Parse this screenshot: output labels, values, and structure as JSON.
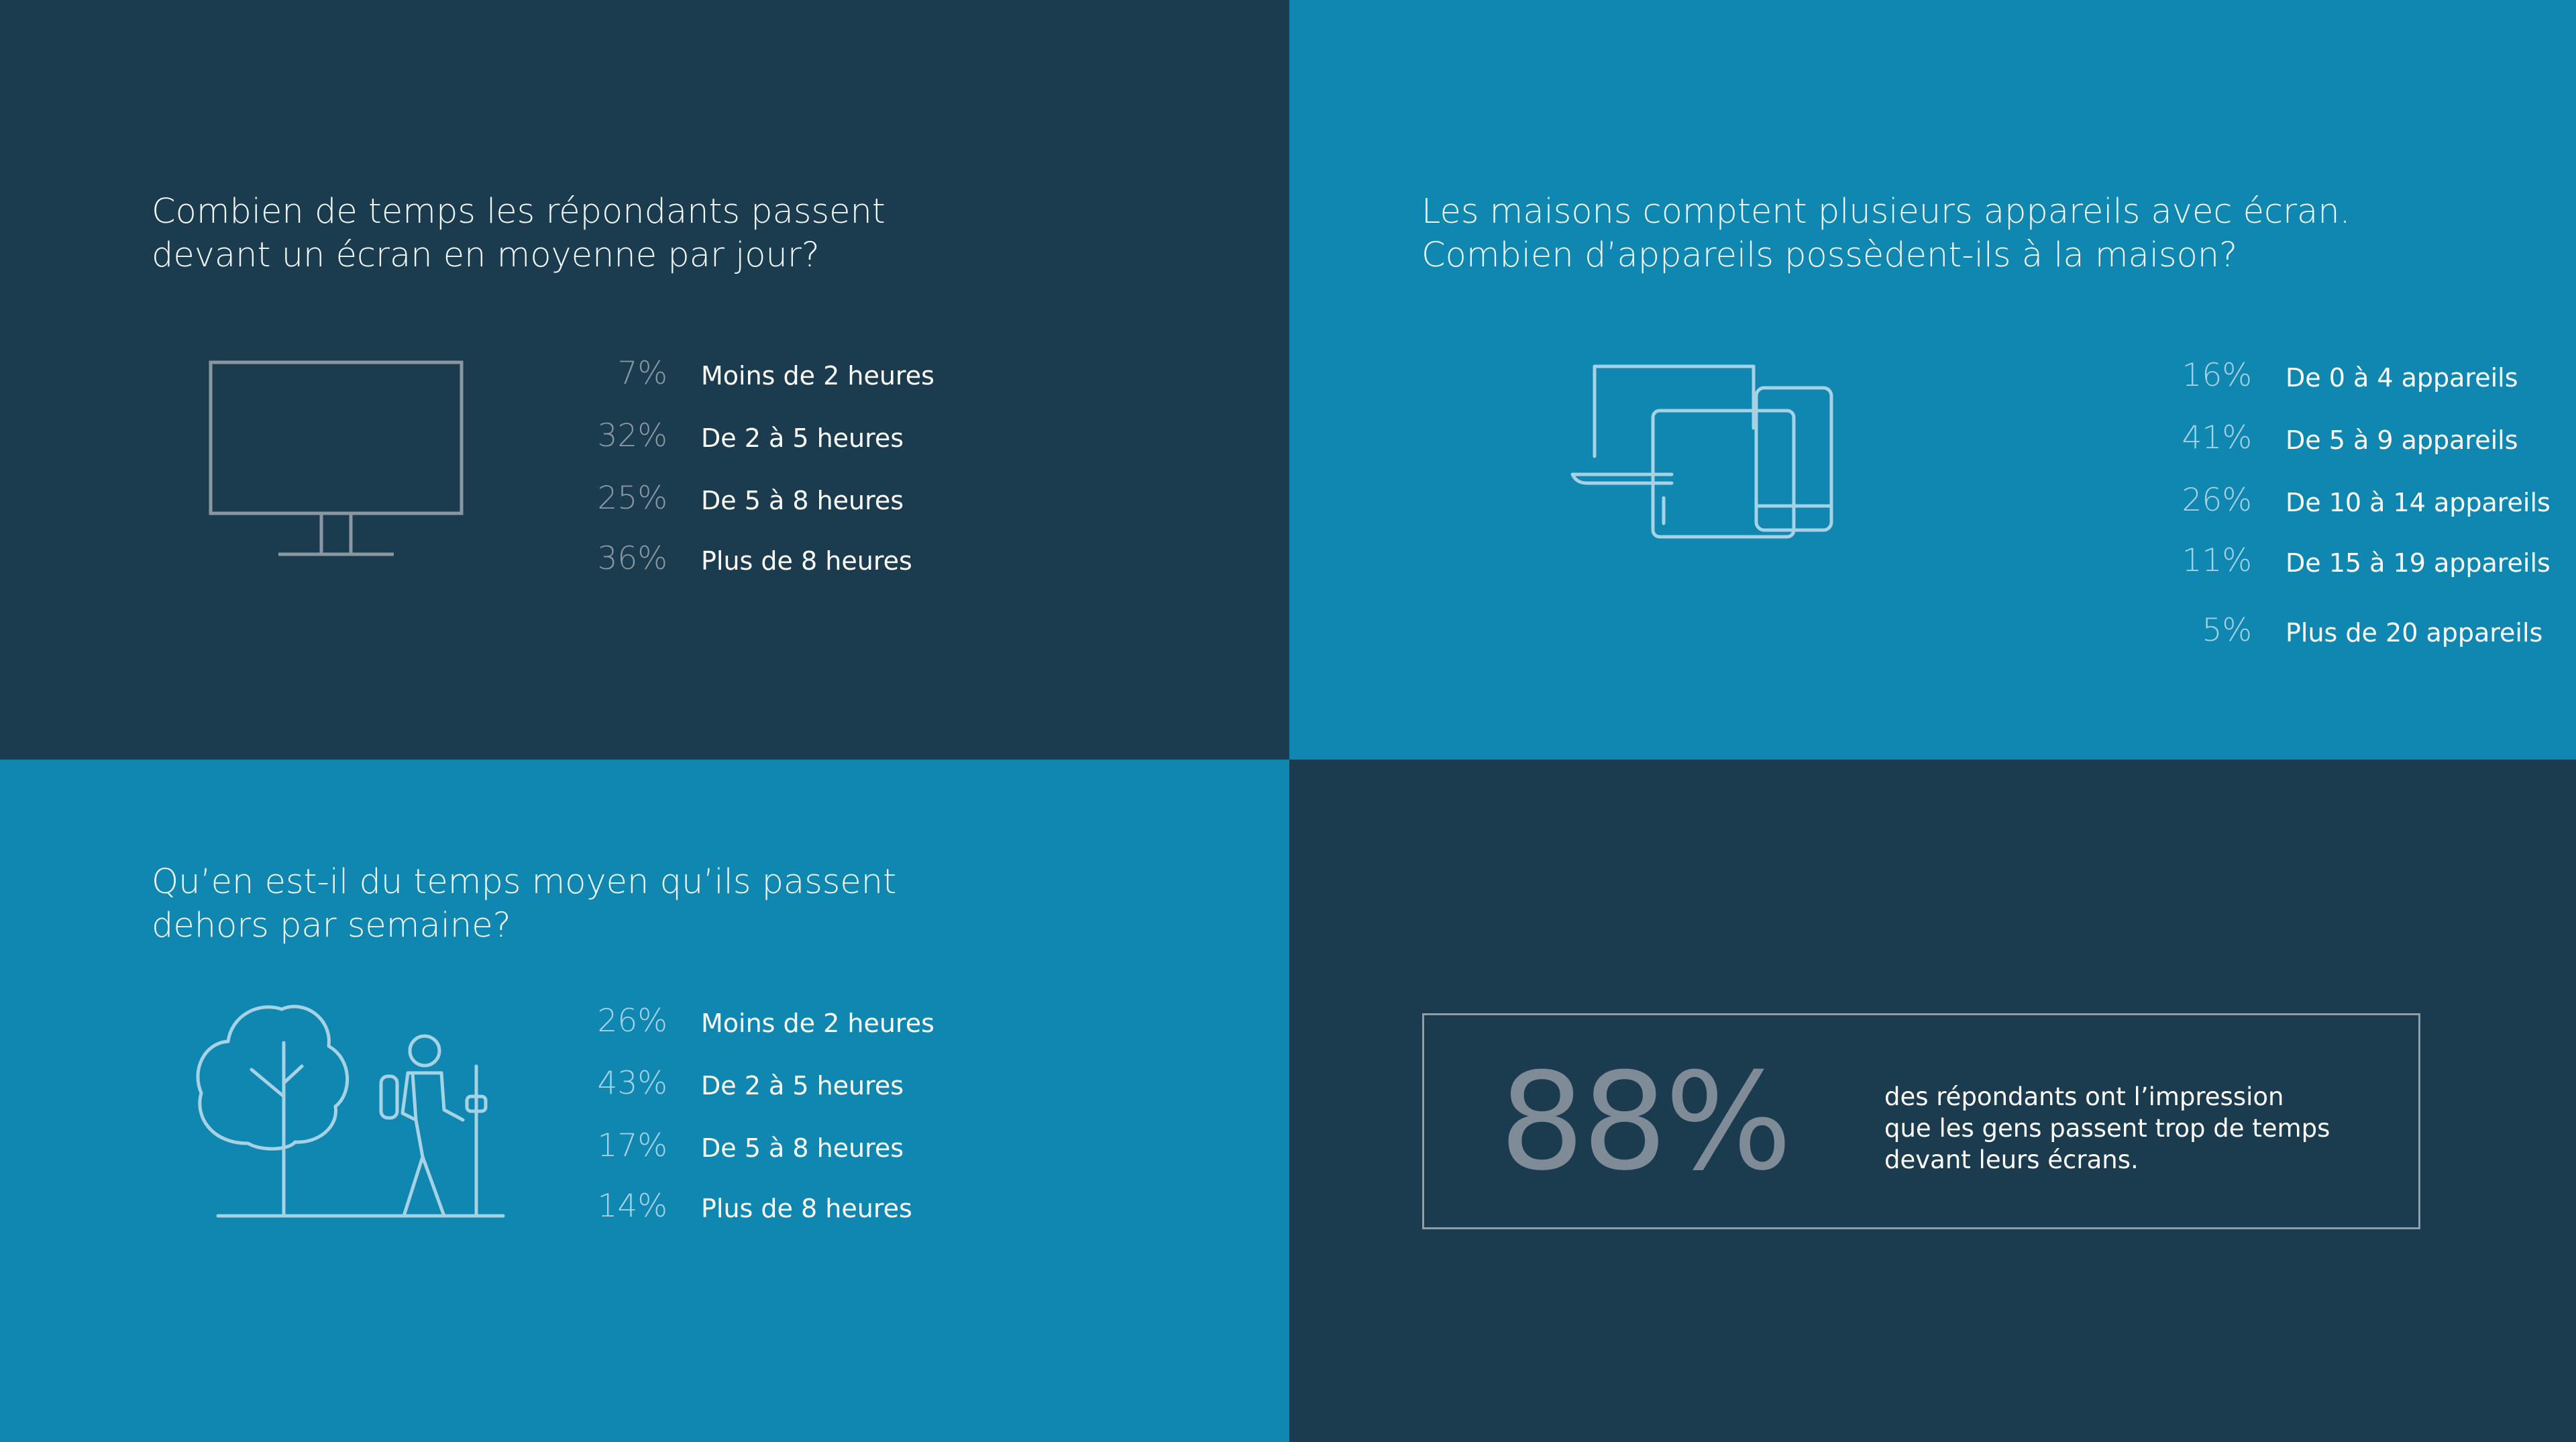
{
  "screen_time": {
    "question": [
      "Combien de temps les répondants passent",
      "devant un écran en moyenne par jour?"
    ],
    "icon": "monitor-icon",
    "stats": [
      {
        "pct": "7%",
        "label": "Moins de 2 heures"
      },
      {
        "pct": "32%",
        "label": "De 2 à 5 heures"
      },
      {
        "pct": "25%",
        "label": "De 5 à 8 heures"
      },
      {
        "pct": "36%",
        "label": "Plus de 8 heures"
      }
    ]
  },
  "devices": {
    "question": [
      "Les maisons comptent plusieurs appareils avec écran.",
      "Combien d’appareils possèdent-ils à la maison?"
    ],
    "icon": "devices-icon",
    "stats": [
      {
        "pct": "16%",
        "label": "De 0 à 4 appareils"
      },
      {
        "pct": "41%",
        "label": "De 5 à 9 appareils"
      },
      {
        "pct": "26%",
        "label": "De 10 à 14 appareils"
      },
      {
        "pct": "11%",
        "label": "De 15 à 19 appareils"
      },
      {
        "pct": "5%",
        "label": "Plus de 20 appareils"
      }
    ]
  },
  "outdoor_time": {
    "question": [
      "Qu’en est-il du temps moyen qu’ils passent",
      "dehors par semaine?"
    ],
    "icon": "tree-hiker-icon",
    "stats": [
      {
        "pct": "26%",
        "label": "Moins de 2 heures"
      },
      {
        "pct": "43%",
        "label": "De 2 à 5 heures"
      },
      {
        "pct": "17%",
        "label": "De 5 à 8 heures"
      },
      {
        "pct": "14%",
        "label": "Plus de 8 heures"
      }
    ]
  },
  "highlight": {
    "value": "88%",
    "caption": [
      "des répondants ont l’impression",
      "que les gens passent trop de temps",
      "devant leurs écrans."
    ]
  },
  "colors": {
    "dark_navy": "#1a3c4e",
    "bright_blue": "#1087b1",
    "muted_gray": "#8a96a1",
    "light_blue": "#a6d2e4"
  }
}
